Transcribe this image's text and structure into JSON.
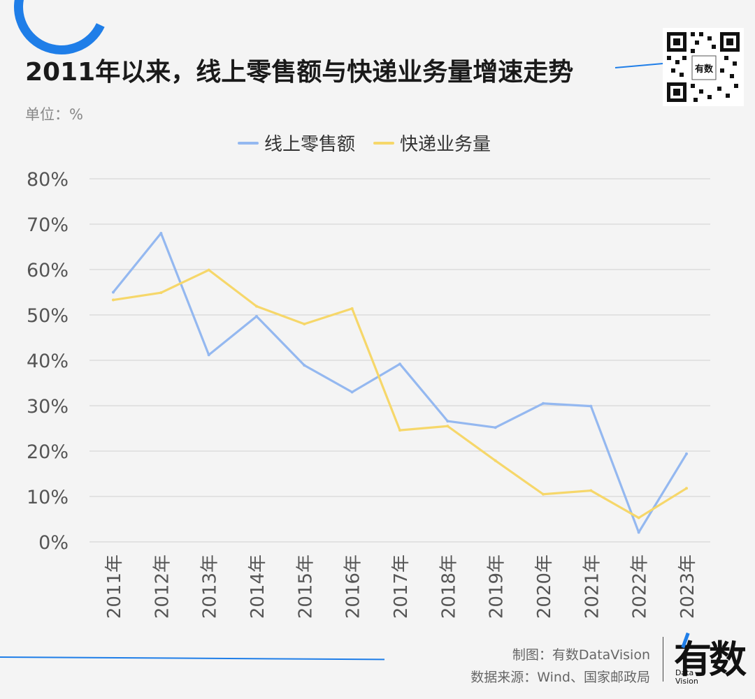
{
  "header": {
    "title": "2011年以来，线上零售额与快递业务量增速走势",
    "unit": "单位：%"
  },
  "colors": {
    "accent": "#1f7ee8",
    "series_online": "#94b8f0",
    "series_express": "#f6d76a",
    "grid": "#d6d6d6"
  },
  "qr": {
    "center_text": "有数"
  },
  "chart_data": {
    "type": "line",
    "categories": [
      "2011年",
      "2012年",
      "2013年",
      "2014年",
      "2015年",
      "2016年",
      "2017年",
      "2018年",
      "2019年",
      "2020年",
      "2021年",
      "2022年",
      "2023年"
    ],
    "series": [
      {
        "name": "线上零售额",
        "values": [
          55.0,
          68.0,
          41.2,
          49.7,
          38.9,
          33.0,
          39.2,
          26.6,
          25.2,
          30.5,
          29.9,
          2.1,
          19.4
        ]
      },
      {
        "name": "快递业务量",
        "values": [
          53.3,
          54.9,
          59.9,
          51.9,
          48.0,
          51.4,
          24.6,
          25.5,
          17.9,
          10.5,
          11.3,
          5.3,
          11.8
        ]
      }
    ],
    "y_ticks": [
      "0%",
      "10%",
      "20%",
      "30%",
      "40%",
      "50%",
      "60%",
      "70%",
      "80%"
    ],
    "ylim": [
      0,
      80
    ],
    "grid": true,
    "legend_position": "top"
  },
  "footer": {
    "made_by": "制图：有数DataVision",
    "source": "数据来源：Wind、国家邮政局",
    "brand_main": "有数",
    "brand_sub_1": "Data",
    "brand_sub_2": "Vision"
  }
}
